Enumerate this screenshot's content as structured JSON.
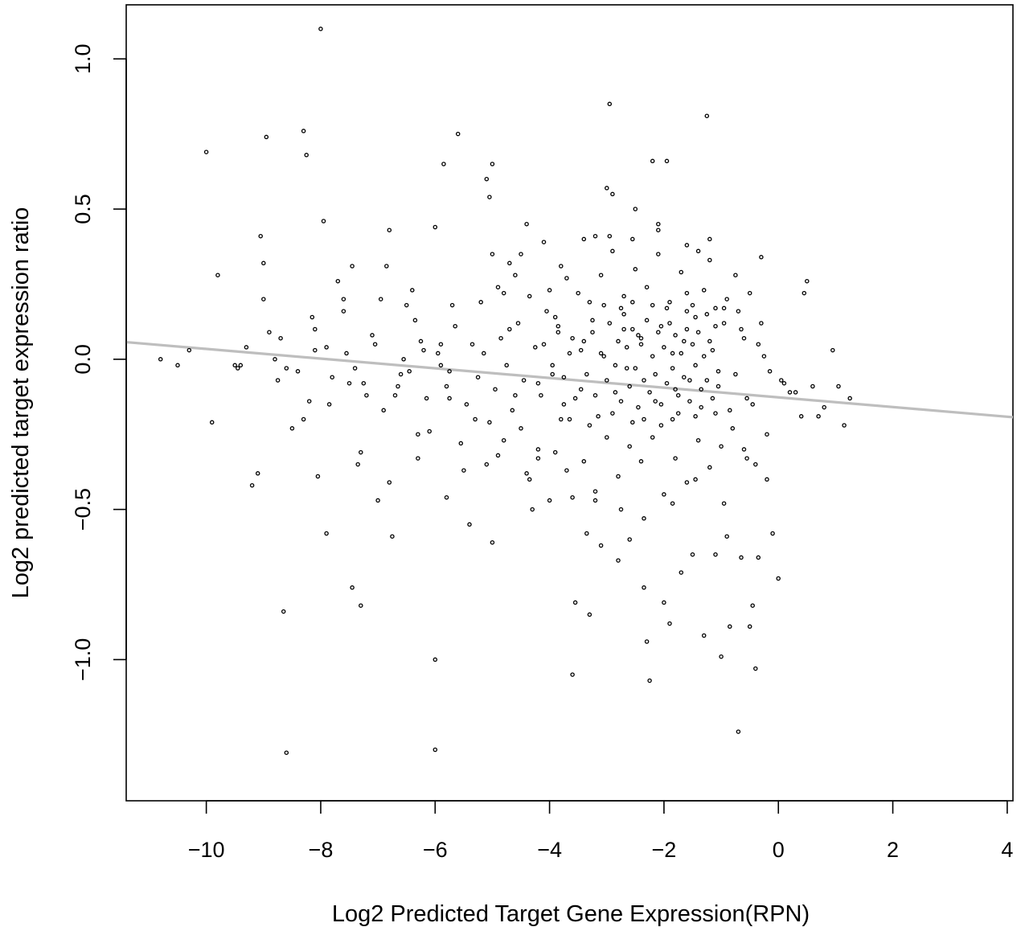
{
  "chart_data": {
    "type": "scatter",
    "title": "",
    "xlabel": "Log2 Predicted Target Gene Expression(RPN)",
    "ylabel": "Log2 predicted target expression ratio",
    "xlim": [
      -11.4,
      4.1
    ],
    "ylim": [
      -1.47,
      1.18
    ],
    "x_ticks": [
      -10,
      -8,
      -6,
      -4,
      -2,
      0,
      2,
      4
    ],
    "x_tick_labels": [
      "−10",
      "−8",
      "−6",
      "−4",
      "−2",
      "0",
      "2",
      "4"
    ],
    "y_ticks": [
      -1.0,
      -0.5,
      0.0,
      0.5,
      1.0
    ],
    "y_tick_labels": [
      "−1.0",
      "−0.5",
      "0.0",
      "0.5",
      "1.0"
    ],
    "grid": false,
    "legend": "none",
    "point_color": "#000000",
    "trend_line": {
      "color": "#bebebe",
      "x": [
        -11.4,
        4.1
      ],
      "y": [
        0.057,
        -0.193
      ]
    },
    "points": [
      [
        -10.8,
        0.0
      ],
      [
        -10.0,
        0.69
      ],
      [
        -9.9,
        -0.21
      ],
      [
        -9.8,
        0.28
      ],
      [
        -9.4,
        -0.02
      ],
      [
        -9.2,
        -0.42
      ],
      [
        -9.1,
        -0.38
      ],
      [
        -9.05,
        0.41
      ],
      [
        -9.0,
        0.32
      ],
      [
        -9.0,
        0.2
      ],
      [
        -8.95,
        0.74
      ],
      [
        -8.8,
        -0.0
      ],
      [
        -8.7,
        0.07
      ],
      [
        -8.65,
        -0.84
      ],
      [
        -8.6,
        -1.31
      ],
      [
        -8.5,
        -0.23
      ],
      [
        -8.3,
        0.76
      ],
      [
        -8.25,
        0.68
      ],
      [
        -8.2,
        -0.14
      ],
      [
        -8.1,
        0.03
      ],
      [
        -8.05,
        -0.39
      ],
      [
        -8.0,
        1.1
      ],
      [
        -7.95,
        0.46
      ],
      [
        -7.9,
        -0.58
      ],
      [
        -7.85,
        -0.15
      ],
      [
        -7.7,
        0.26
      ],
      [
        -7.6,
        0.2
      ],
      [
        -7.45,
        0.31
      ],
      [
        -7.45,
        -0.76
      ],
      [
        -7.4,
        -0.03
      ],
      [
        -7.35,
        -0.35
      ],
      [
        -7.3,
        -0.82
      ],
      [
        -7.2,
        -0.12
      ],
      [
        -7.1,
        0.08
      ],
      [
        -7.0,
        -0.47
      ],
      [
        -6.95,
        0.2
      ],
      [
        -6.85,
        0.31
      ],
      [
        -6.8,
        0.43
      ],
      [
        -6.75,
        -0.59
      ],
      [
        -6.7,
        -0.12
      ],
      [
        -6.6,
        -0.05
      ],
      [
        -6.5,
        0.18
      ],
      [
        -6.4,
        0.23
      ],
      [
        -6.3,
        -0.25
      ],
      [
        -6.2,
        0.03
      ],
      [
        -6.0,
        -1.0
      ],
      [
        -6.0,
        -1.3
      ],
      [
        -6.0,
        0.44
      ],
      [
        -5.9,
        -0.02
      ],
      [
        -5.85,
        0.65
      ],
      [
        -5.75,
        -0.04
      ],
      [
        -5.6,
        0.75
      ],
      [
        -5.5,
        -0.37
      ],
      [
        -5.4,
        -0.55
      ],
      [
        -5.3,
        -0.2
      ],
      [
        -5.1,
        0.6
      ],
      [
        -5.05,
        0.54
      ],
      [
        -5.0,
        0.65
      ],
      [
        -5.0,
        -0.61
      ],
      [
        -4.9,
        -0.32
      ],
      [
        -4.8,
        0.22
      ],
      [
        -4.7,
        0.1
      ],
      [
        -4.6,
        -0.12
      ],
      [
        -4.5,
        0.35
      ],
      [
        -4.4,
        0.45
      ],
      [
        -4.35,
        -0.4
      ],
      [
        -4.3,
        -0.5
      ],
      [
        -4.2,
        -0.3
      ],
      [
        -4.1,
        0.39
      ],
      [
        -4.0,
        -0.47
      ],
      [
        -3.9,
        0.14
      ],
      [
        -3.8,
        -0.2
      ],
      [
        -3.7,
        0.27
      ],
      [
        -3.6,
        -1.05
      ],
      [
        -3.55,
        -0.81
      ],
      [
        -3.4,
        0.06
      ],
      [
        -3.35,
        -0.58
      ],
      [
        -3.3,
        -0.85
      ],
      [
        -3.2,
        0.41
      ],
      [
        -3.1,
        -0.62
      ],
      [
        -3.0,
        0.57
      ],
      [
        -2.95,
        0.85
      ],
      [
        -2.9,
        0.55
      ],
      [
        -2.8,
        -0.67
      ],
      [
        -2.7,
        0.1
      ],
      [
        -2.6,
        -0.6
      ],
      [
        -2.5,
        0.5
      ],
      [
        -2.4,
        0.05
      ],
      [
        -2.35,
        -0.76
      ],
      [
        -2.3,
        -0.94
      ],
      [
        -2.25,
        -1.07
      ],
      [
        -2.2,
        0.66
      ],
      [
        -2.1,
        0.43
      ],
      [
        -2.0,
        -0.81
      ],
      [
        -1.95,
        0.66
      ],
      [
        -1.9,
        -0.88
      ],
      [
        -1.8,
        -0.1
      ],
      [
        -1.7,
        -0.71
      ],
      [
        -1.6,
        0.22
      ],
      [
        -1.5,
        -0.65
      ],
      [
        -1.4,
        0.36
      ],
      [
        -1.3,
        -0.92
      ],
      [
        -1.25,
        0.81
      ],
      [
        -1.2,
        0.4
      ],
      [
        -1.1,
        -0.65
      ],
      [
        -1.0,
        -0.99
      ],
      [
        -0.9,
        -0.59
      ],
      [
        -0.85,
        -0.89
      ],
      [
        -0.7,
        -1.24
      ],
      [
        -0.65,
        -0.66
      ],
      [
        -0.5,
        -0.89
      ],
      [
        -0.45,
        -0.82
      ],
      [
        -0.4,
        -1.03
      ],
      [
        -0.35,
        -0.66
      ],
      [
        -0.3,
        0.34
      ],
      [
        -0.2,
        -0.4
      ],
      [
        -0.1,
        -0.58
      ],
      [
        0.0,
        -0.73
      ],
      [
        0.1,
        -0.08
      ],
      [
        0.3,
        -0.11
      ],
      [
        0.45,
        0.22
      ],
      [
        0.5,
        0.26
      ],
      [
        0.6,
        -0.09
      ],
      [
        0.8,
        -0.16
      ],
      [
        0.95,
        0.03
      ],
      [
        1.05,
        -0.09
      ],
      [
        1.15,
        -0.22
      ],
      [
        1.25,
        -0.13
      ],
      [
        -9.5,
        -0.02
      ],
      [
        -9.3,
        0.04
      ],
      [
        -8.9,
        0.09
      ],
      [
        -8.75,
        -0.07
      ],
      [
        -8.4,
        -0.04
      ],
      [
        -8.15,
        0.14
      ],
      [
        -7.8,
        -0.06
      ],
      [
        -7.55,
        0.02
      ],
      [
        -7.25,
        -0.08
      ],
      [
        -7.05,
        0.05
      ],
      [
        -6.9,
        -0.17
      ],
      [
        -6.65,
        -0.09
      ],
      [
        -6.45,
        -0.04
      ],
      [
        -6.25,
        0.06
      ],
      [
        -6.15,
        -0.13
      ],
      [
        -5.95,
        0.02
      ],
      [
        -5.8,
        -0.09
      ],
      [
        -5.65,
        0.11
      ],
      [
        -5.45,
        -0.15
      ],
      [
        -5.35,
        0.05
      ],
      [
        -5.25,
        -0.06
      ],
      [
        -5.15,
        0.02
      ],
      [
        -4.95,
        -0.1
      ],
      [
        -4.85,
        0.07
      ],
      [
        -4.75,
        -0.02
      ],
      [
        -4.65,
        -0.17
      ],
      [
        -4.55,
        0.12
      ],
      [
        -4.45,
        -0.07
      ],
      [
        -4.25,
        0.04
      ],
      [
        -4.15,
        -0.12
      ],
      [
        -4.05,
        0.16
      ],
      [
        -3.95,
        -0.05
      ],
      [
        -3.85,
        0.09
      ],
      [
        -3.75,
        -0.15
      ],
      [
        -3.65,
        0.02
      ],
      [
        -3.45,
        -0.1
      ],
      [
        -3.25,
        0.13
      ],
      [
        -3.15,
        -0.19
      ],
      [
        -3.05,
        0.01
      ],
      [
        -2.85,
        -0.11
      ],
      [
        -2.75,
        0.17
      ],
      [
        -2.65,
        -0.03
      ],
      [
        -2.55,
        -0.21
      ],
      [
        -2.45,
        0.08
      ],
      [
        -2.15,
        -0.14
      ],
      [
        -2.05,
        0.11
      ],
      [
        -1.85,
        0.02
      ],
      [
        -1.75,
        -0.18
      ],
      [
        -1.65,
        0.06
      ],
      [
        -1.55,
        -0.07
      ],
      [
        -1.45,
        0.14
      ],
      [
        -1.35,
        -0.16
      ],
      [
        -1.15,
        0.03
      ],
      [
        -1.05,
        -0.09
      ],
      [
        -0.95,
        0.12
      ],
      [
        -0.75,
        -0.05
      ],
      [
        -0.6,
        0.07
      ],
      [
        -0.55,
        -0.13
      ],
      [
        -0.25,
        0.01
      ],
      [
        -0.15,
        -0.04
      ],
      [
        0.05,
        -0.07
      ],
      [
        0.2,
        -0.11
      ],
      [
        0.4,
        -0.19
      ],
      [
        0.7,
        -0.19
      ],
      [
        -6.35,
        0.13
      ],
      [
        -6.1,
        -0.24
      ],
      [
        -5.7,
        0.18
      ],
      [
        -5.55,
        -0.28
      ],
      [
        -5.2,
        0.19
      ],
      [
        -5.05,
        -0.21
      ],
      [
        -4.9,
        0.24
      ],
      [
        -4.8,
        -0.27
      ],
      [
        -4.6,
        0.28
      ],
      [
        -4.5,
        -0.23
      ],
      [
        -4.35,
        0.21
      ],
      [
        -4.2,
        -0.33
      ],
      [
        -4.0,
        0.23
      ],
      [
        -3.9,
        -0.31
      ],
      [
        -3.8,
        0.31
      ],
      [
        -3.7,
        -0.37
      ],
      [
        -3.5,
        0.22
      ],
      [
        -3.4,
        -0.34
      ],
      [
        -3.3,
        0.19
      ],
      [
        -3.2,
        -0.44
      ],
      [
        -3.1,
        0.28
      ],
      [
        -3.0,
        -0.26
      ],
      [
        -2.9,
        0.36
      ],
      [
        -2.8,
        -0.39
      ],
      [
        -2.7,
        0.21
      ],
      [
        -2.6,
        -0.29
      ],
      [
        -2.5,
        0.3
      ],
      [
        -2.4,
        -0.34
      ],
      [
        -2.3,
        0.24
      ],
      [
        -2.2,
        -0.26
      ],
      [
        -2.1,
        0.35
      ],
      [
        -2.0,
        -0.45
      ],
      [
        -1.9,
        0.19
      ],
      [
        -1.8,
        -0.33
      ],
      [
        -1.7,
        0.29
      ],
      [
        -1.6,
        -0.41
      ],
      [
        -1.5,
        0.18
      ],
      [
        -1.4,
        -0.27
      ],
      [
        -1.3,
        0.23
      ],
      [
        -1.2,
        -0.36
      ],
      [
        -1.1,
        0.17
      ],
      [
        -1.0,
        -0.29
      ],
      [
        -0.9,
        0.2
      ],
      [
        -0.8,
        -0.23
      ],
      [
        -0.7,
        0.16
      ],
      [
        -0.6,
        -0.3
      ],
      [
        -0.5,
        0.22
      ],
      [
        -0.4,
        -0.35
      ],
      [
        -0.3,
        0.12
      ],
      [
        -0.2,
        -0.25
      ],
      [
        -4.2,
        -0.08
      ],
      [
        -4.1,
        0.05
      ],
      [
        -3.95,
        -0.02
      ],
      [
        -3.85,
        0.11
      ],
      [
        -3.75,
        -0.06
      ],
      [
        -3.6,
        0.07
      ],
      [
        -3.55,
        -0.13
      ],
      [
        -3.45,
        0.03
      ],
      [
        -3.35,
        -0.05
      ],
      [
        -3.25,
        0.09
      ],
      [
        -3.2,
        -0.12
      ],
      [
        -3.1,
        0.02
      ],
      [
        -3.0,
        -0.07
      ],
      [
        -2.95,
        0.12
      ],
      [
        -2.85,
        -0.02
      ],
      [
        -2.8,
        0.06
      ],
      [
        -2.75,
        -0.14
      ],
      [
        -2.65,
        0.04
      ],
      [
        -2.6,
        -0.09
      ],
      [
        -2.55,
        0.1
      ],
      [
        -2.5,
        -0.03
      ],
      [
        -2.45,
        -0.16
      ],
      [
        -2.4,
        0.07
      ],
      [
        -2.35,
        -0.07
      ],
      [
        -2.3,
        0.13
      ],
      [
        -2.25,
        -0.11
      ],
      [
        -2.2,
        0.01
      ],
      [
        -2.15,
        -0.05
      ],
      [
        -2.1,
        0.09
      ],
      [
        -2.05,
        -0.15
      ],
      [
        -2.0,
        0.04
      ],
      [
        -1.95,
        -0.08
      ],
      [
        -1.9,
        0.12
      ],
      [
        -1.85,
        -0.03
      ],
      [
        -1.8,
        0.08
      ],
      [
        -1.75,
        -0.12
      ],
      [
        -1.7,
        0.02
      ],
      [
        -1.65,
        -0.06
      ],
      [
        -1.6,
        0.1
      ],
      [
        -1.55,
        -0.14
      ],
      [
        -1.5,
        0.05
      ],
      [
        -1.45,
        -0.02
      ],
      [
        -1.4,
        0.09
      ],
      [
        -1.35,
        -0.1
      ],
      [
        -1.3,
        0.01
      ],
      [
        -1.25,
        -0.07
      ],
      [
        -1.2,
        0.06
      ],
      [
        -1.15,
        -0.13
      ],
      [
        -1.1,
        0.11
      ],
      [
        -1.05,
        -0.04
      ],
      [
        -3.65,
        -0.2
      ],
      [
        -3.3,
        -0.22
      ],
      [
        -3.05,
        0.18
      ],
      [
        -2.9,
        -0.18
      ],
      [
        -2.7,
        0.15
      ],
      [
        -2.55,
        0.19
      ],
      [
        -2.35,
        -0.2
      ],
      [
        -2.2,
        0.18
      ],
      [
        -2.05,
        -0.22
      ],
      [
        -1.95,
        0.17
      ],
      [
        -1.85,
        -0.2
      ],
      [
        -1.6,
        0.16
      ],
      [
        -1.45,
        -0.19
      ],
      [
        -1.25,
        0.15
      ],
      [
        -1.1,
        -0.18
      ],
      [
        -0.95,
        0.17
      ],
      [
        -0.85,
        -0.17
      ],
      [
        -0.65,
        0.1
      ],
      [
        -0.45,
        -0.15
      ],
      [
        -0.35,
        0.05
      ],
      [
        -5.0,
        0.35
      ],
      [
        -4.7,
        0.32
      ],
      [
        -4.4,
        -0.38
      ],
      [
        -3.6,
        -0.46
      ],
      [
        -3.4,
        0.4
      ],
      [
        -3.2,
        -0.47
      ],
      [
        -2.95,
        0.41
      ],
      [
        -2.75,
        -0.5
      ],
      [
        -2.55,
        0.4
      ],
      [
        -2.35,
        -0.53
      ],
      [
        -2.1,
        0.45
      ],
      [
        -1.85,
        -0.48
      ],
      [
        -1.6,
        0.38
      ],
      [
        -1.45,
        -0.4
      ],
      [
        -1.2,
        0.33
      ],
      [
        -0.95,
        -0.48
      ],
      [
        -0.75,
        0.28
      ],
      [
        -0.55,
        -0.33
      ],
      [
        -5.8,
        -0.46
      ],
      [
        -6.3,
        -0.33
      ],
      [
        -6.8,
        -0.41
      ],
      [
        -7.3,
        -0.31
      ],
      [
        -7.6,
        0.16
      ],
      [
        -8.3,
        -0.2
      ],
      [
        -8.6,
        -0.03
      ],
      [
        -9.45,
        -0.03
      ],
      [
        -10.3,
        0.03
      ],
      [
        -10.5,
        -0.02
      ],
      [
        -8.1,
        0.1
      ],
      [
        -7.9,
        0.04
      ],
      [
        -7.5,
        -0.08
      ],
      [
        -6.55,
        0.0
      ],
      [
        -5.9,
        0.05
      ],
      [
        -5.75,
        -0.13
      ],
      [
        -5.1,
        -0.35
      ]
    ]
  }
}
